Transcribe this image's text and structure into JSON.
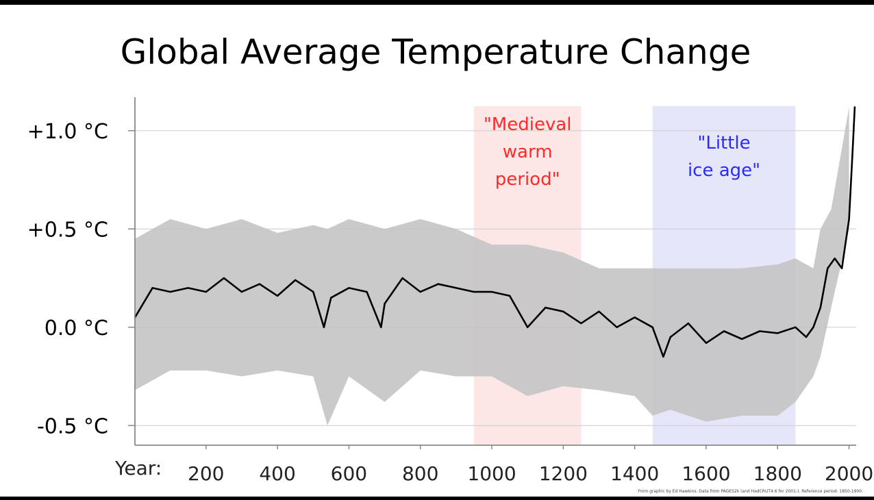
{
  "chart_data": {
    "type": "line",
    "title": "Global Average Temperature Change",
    "xlabel": "Year:",
    "ylabel": "",
    "xlim": [
      1,
      2020
    ],
    "ylim": [
      -0.6,
      1.17
    ],
    "y_ticks": [
      {
        "value": 1.0,
        "label": "+1.0 °C"
      },
      {
        "value": 0.5,
        "label": "+0.5 °C"
      },
      {
        "value": 0.0,
        "label": "0.0 °C"
      },
      {
        "value": -0.5,
        "label": "-0.5 °C"
      }
    ],
    "x_ticks": [
      {
        "value": 200,
        "label": "200"
      },
      {
        "value": 400,
        "label": "400"
      },
      {
        "value": 600,
        "label": "600"
      },
      {
        "value": 800,
        "label": "800"
      },
      {
        "value": 1000,
        "label": "1000"
      },
      {
        "value": 1200,
        "label": "1200"
      },
      {
        "value": 1400,
        "label": "1400"
      },
      {
        "value": 1600,
        "label": "1600"
      },
      {
        "value": 1800,
        "label": "1800"
      },
      {
        "value": 2000,
        "label": "2000"
      }
    ],
    "grid": true,
    "series": [
      {
        "color": "#000000",
        "x": [
          1,
          50,
          100,
          150,
          200,
          250,
          300,
          350,
          400,
          450,
          500,
          530,
          550,
          600,
          650,
          690,
          700,
          750,
          800,
          850,
          900,
          950,
          1000,
          1050,
          1100,
          1150,
          1200,
          1250,
          1300,
          1350,
          1400,
          1450,
          1480,
          1500,
          1550,
          1600,
          1650,
          1700,
          1750,
          1800,
          1850,
          1880,
          1900,
          1920,
          1940,
          1960,
          1980,
          2000,
          2010,
          2016
        ],
        "y": [
          0.05,
          0.2,
          0.18,
          0.2,
          0.18,
          0.25,
          0.18,
          0.22,
          0.16,
          0.24,
          0.18,
          0.0,
          0.15,
          0.2,
          0.18,
          0.0,
          0.12,
          0.25,
          0.18,
          0.22,
          0.2,
          0.18,
          0.18,
          0.16,
          0.0,
          0.1,
          0.08,
          0.02,
          0.08,
          0.0,
          0.05,
          0.0,
          -0.15,
          -0.05,
          0.02,
          -0.08,
          -0.02,
          -0.06,
          -0.02,
          -0.03,
          0.0,
          -0.05,
          0.0,
          0.1,
          0.3,
          0.35,
          0.3,
          0.55,
          0.9,
          1.12
        ]
      },
      {
        "name": "uncertainty band",
        "type": "area",
        "color": "#c4c4c4",
        "x": [
          1,
          100,
          200,
          300,
          400,
          500,
          540,
          600,
          700,
          800,
          900,
          1000,
          1100,
          1200,
          1300,
          1400,
          1450,
          1500,
          1600,
          1700,
          1800,
          1850,
          1900,
          1920,
          1950,
          2000
        ],
        "lower": [
          -0.32,
          -0.22,
          -0.22,
          -0.25,
          -0.22,
          -0.25,
          -0.5,
          -0.25,
          -0.38,
          -0.22,
          -0.25,
          -0.25,
          -0.35,
          -0.3,
          -0.32,
          -0.35,
          -0.45,
          -0.42,
          -0.48,
          -0.45,
          -0.45,
          -0.38,
          -0.25,
          -0.15,
          0.1,
          0.5
        ],
        "upper": [
          0.45,
          0.55,
          0.5,
          0.55,
          0.48,
          0.52,
          0.5,
          0.55,
          0.5,
          0.55,
          0.5,
          0.42,
          0.42,
          0.38,
          0.3,
          0.3,
          0.3,
          0.3,
          0.3,
          0.3,
          0.32,
          0.35,
          0.3,
          0.5,
          0.6,
          1.12
        ]
      }
    ],
    "annotations": [
      {
        "label": "\"Medieval warm period\"",
        "lines": [
          "\"Medieval",
          "warm",
          "period\""
        ],
        "x_start": 950,
        "x_end": 1250,
        "color": "#ff2a2a",
        "fill": "#fde6e6"
      },
      {
        "label": "\"Little ice age\"",
        "lines": [
          "\"Little",
          "ice age\""
        ],
        "x_start": 1450,
        "x_end": 1850,
        "color": "#2a2aff",
        "fill": "#e6e6fb"
      }
    ],
    "credit": "From graphic by Ed Hawkins.  Data from PAGES2k (and HadCRUT4.6 for 2001-).   Reference period: 1850-1900."
  }
}
